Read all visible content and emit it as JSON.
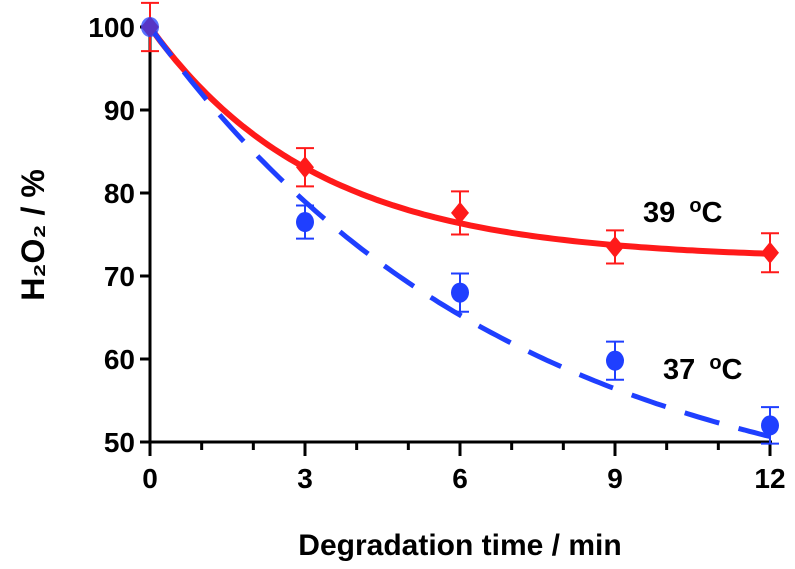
{
  "chart_data": {
    "type": "scatter",
    "xlabel": "Degradation time / min",
    "ylabel": "H₂O₂ / %",
    "xlim": [
      0,
      12
    ],
    "ylim": [
      50,
      100
    ],
    "xticks": [
      0,
      3,
      6,
      9,
      12
    ],
    "xtick_labels": [
      "0",
      "3",
      "6",
      "9",
      "12"
    ],
    "x_minor_step": 1,
    "yticks": [
      50,
      60,
      70,
      80,
      90,
      100
    ],
    "ytick_labels": [
      "50",
      "60",
      "70",
      "80",
      "90",
      "100"
    ],
    "grid": false,
    "series": [
      {
        "name": "39 °C",
        "label_parts": {
          "number": "39",
          "degree": "o",
          "unit": "C"
        },
        "color": "#ff1a1a",
        "marker": "diamond",
        "line": "solid",
        "x": [
          0,
          3,
          6,
          9,
          12
        ],
        "y": [
          100,
          83.1,
          77.6,
          73.5,
          72.8
        ],
        "error": [
          2.9,
          2.3,
          2.6,
          2.0,
          2.35
        ],
        "fit": {
          "model": "one-phase exponential decay",
          "plateau": 72,
          "span": 28,
          "k": 0.31
        }
      },
      {
        "name": "37 °C",
        "label_parts": {
          "number": "37",
          "degree": "o",
          "unit": "C"
        },
        "color": "#1f3fff",
        "marker": "circle",
        "line": "dashed",
        "x": [
          0,
          3,
          6,
          9,
          12
        ],
        "y": [
          100,
          76.5,
          68.0,
          59.8,
          52.0
        ],
        "error": [
          0,
          2.0,
          2.3,
          2.3,
          2.2
        ],
        "fit": {
          "model": "one-phase exponential decay",
          "plateau": 40,
          "span": 60,
          "k": 0.144
        }
      }
    ]
  }
}
